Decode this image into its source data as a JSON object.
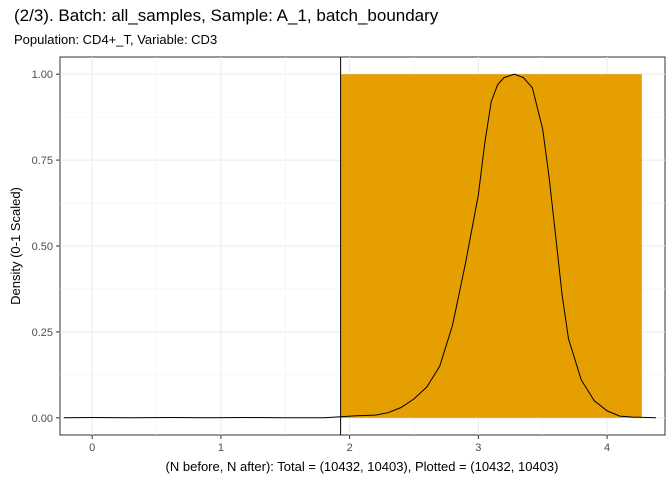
{
  "chart_data": {
    "type": "area",
    "title": "(2/3). Batch: all_samples, Sample: A_1, batch_boundary",
    "subtitle": "Population: CD4+_T, Variable: CD3",
    "xlabel": "(N before, N after): Total = (10432, 10403), Plotted = (10432, 10403)",
    "ylabel": "Density (0-1 Scaled)",
    "xlim": [
      -0.25,
      4.45
    ],
    "ylim": [
      -0.05,
      1.05
    ],
    "x_ticks": [
      0,
      1,
      2,
      3,
      4
    ],
    "y_ticks": [
      0.0,
      0.25,
      0.5,
      0.75,
      1.0
    ],
    "x_tick_labels": [
      "0",
      "1",
      "2",
      "3",
      "4"
    ],
    "y_tick_labels": [
      "0.00",
      "0.25",
      "0.50",
      "0.75",
      "1.00"
    ],
    "grid": true,
    "gate": {
      "x_min": 1.93,
      "x_max": 4.27,
      "y_max": 1.0,
      "color": "#E69F00"
    },
    "boundary_line_x": 1.93,
    "density_curve": [
      [
        -0.22,
        0.0
      ],
      [
        0.0,
        0.001
      ],
      [
        0.3,
        0.0
      ],
      [
        0.6,
        0.001
      ],
      [
        0.9,
        0.0
      ],
      [
        1.2,
        0.001
      ],
      [
        1.5,
        0.0
      ],
      [
        1.8,
        0.0
      ],
      [
        1.93,
        0.003
      ],
      [
        2.05,
        0.006
      ],
      [
        2.2,
        0.008
      ],
      [
        2.3,
        0.015
      ],
      [
        2.4,
        0.03
      ],
      [
        2.5,
        0.055
      ],
      [
        2.6,
        0.09
      ],
      [
        2.7,
        0.15
      ],
      [
        2.8,
        0.27
      ],
      [
        2.9,
        0.45
      ],
      [
        3.0,
        0.65
      ],
      [
        3.05,
        0.8
      ],
      [
        3.1,
        0.92
      ],
      [
        3.15,
        0.97
      ],
      [
        3.2,
        0.99
      ],
      [
        3.28,
        1.0
      ],
      [
        3.35,
        0.99
      ],
      [
        3.42,
        0.96
      ],
      [
        3.5,
        0.84
      ],
      [
        3.55,
        0.7
      ],
      [
        3.6,
        0.53
      ],
      [
        3.65,
        0.36
      ],
      [
        3.7,
        0.23
      ],
      [
        3.8,
        0.11
      ],
      [
        3.9,
        0.05
      ],
      [
        4.0,
        0.02
      ],
      [
        4.1,
        0.005
      ],
      [
        4.2,
        0.002
      ],
      [
        4.38,
        0.0
      ]
    ]
  }
}
